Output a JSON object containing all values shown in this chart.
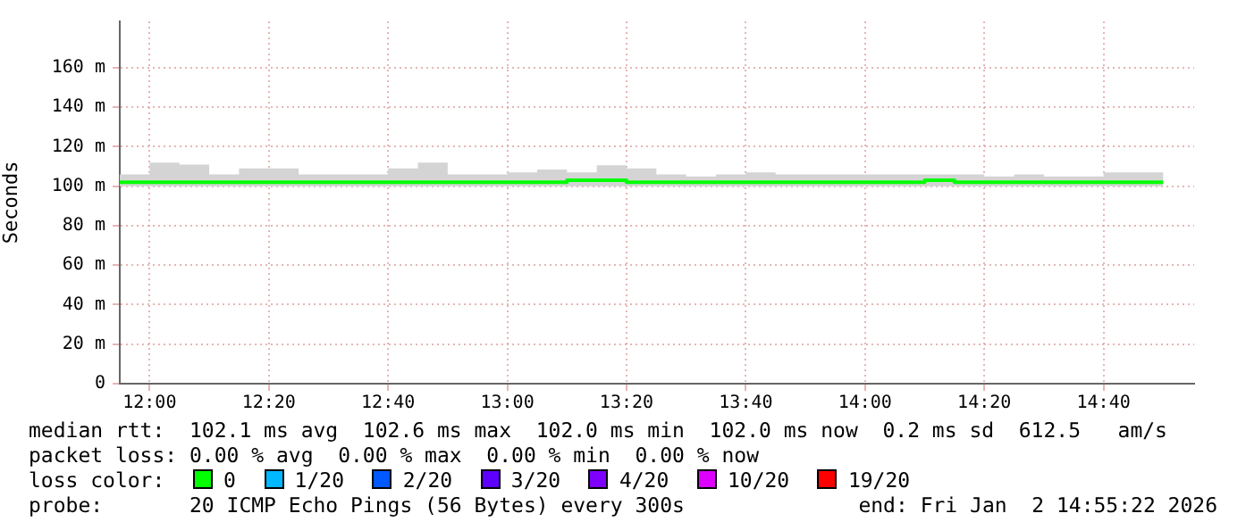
{
  "chart_data": {
    "type": "step",
    "ylabel": "Seconds",
    "legend_title": "loss color:",
    "legend": "bottom",
    "grid": true,
    "marker": "none",
    "x": [
      11.9167,
      12,
      12.0833,
      12.1667,
      12.25,
      12.3333,
      12.4167,
      12.5,
      12.5833,
      12.6667,
      12.75,
      12.8333,
      12.9167,
      13,
      13.0833,
      13.1667,
      13.25,
      13.3333,
      13.4167,
      13.5,
      13.5833,
      13.6667,
      13.75,
      13.8333,
      13.9167,
      14,
      14.0833,
      14.1667,
      14.25,
      14.3333,
      14.4167,
      14.5,
      14.5833,
      14.6667,
      14.75,
      14.8333
    ],
    "xlim": [
      11.9167,
      14.92
    ],
    "xticks": [
      {
        "value": 12,
        "label": "12:00"
      },
      {
        "value": 12.3333,
        "label": "12:20"
      },
      {
        "value": 12.6667,
        "label": "12:40"
      },
      {
        "value": 13,
        "label": "13:00"
      },
      {
        "value": 13.3333,
        "label": "13:20"
      },
      {
        "value": 13.6667,
        "label": "13:40"
      },
      {
        "value": 14,
        "label": "14:00"
      },
      {
        "value": 14.3333,
        "label": "14:20"
      },
      {
        "value": 14.6667,
        "label": "14:40"
      }
    ],
    "ylim": [
      0,
      183.5
    ],
    "yticks": [
      0,
      {
        "value": 20,
        "label": "20 m"
      },
      {
        "value": 40,
        "label": "40 m"
      },
      {
        "value": 60,
        "label": "60 m"
      },
      {
        "value": 80,
        "label": "80 m"
      },
      {
        "value": 100,
        "label": "100 m"
      },
      {
        "value": 120,
        "label": "120 m"
      },
      {
        "value": 140,
        "label": "140 m"
      },
      {
        "value": 160,
        "label": "160 m"
      }
    ],
    "series": [
      {
        "name": "0",
        "color": "#00ff00",
        "values": [
          102,
          102,
          102,
          102,
          102,
          102,
          102,
          102,
          102,
          102,
          102,
          102,
          102,
          102,
          102,
          102,
          103,
          103,
          102,
          102,
          102,
          102,
          102,
          102,
          102,
          102,
          102,
          102,
          103,
          102,
          102,
          102,
          102,
          102,
          102,
          102
        ],
        "lower": [
          100,
          100,
          100,
          100,
          100,
          100,
          100,
          100,
          100,
          100,
          100,
          100,
          100,
          100,
          100,
          100,
          100,
          100,
          100,
          100,
          100,
          100,
          100,
          100,
          100,
          100,
          100,
          100,
          100,
          100,
          100,
          100,
          100,
          100,
          100,
          100
        ],
        "upper": [
          106,
          112,
          111,
          106,
          109,
          109,
          106,
          106,
          106,
          109,
          112,
          106,
          106,
          107,
          108.5,
          107,
          110.6,
          109,
          106,
          105,
          106,
          107,
          106,
          106,
          106,
          106,
          106,
          106,
          106,
          105,
          106,
          105,
          105,
          107,
          107,
          106
        ]
      },
      {
        "name": "1/20",
        "color": "#00b8ff",
        "values": [
          null,
          null,
          null,
          null,
          null,
          null,
          null,
          null,
          null,
          null,
          null,
          null,
          null,
          null,
          null,
          null,
          null,
          null,
          null,
          null,
          null,
          null,
          null,
          null,
          null,
          null,
          null,
          null,
          null,
          null,
          null,
          null,
          null,
          null,
          null,
          null
        ]
      },
      {
        "name": "2/20",
        "color": "#0059ff",
        "values": [
          null,
          null,
          null,
          null,
          null,
          null,
          null,
          null,
          null,
          null,
          null,
          null,
          null,
          null,
          null,
          null,
          null,
          null,
          null,
          null,
          null,
          null,
          null,
          null,
          null,
          null,
          null,
          null,
          null,
          null,
          null,
          null,
          null,
          null,
          null,
          null
        ]
      },
      {
        "name": "3/20",
        "color": "#5e00ff",
        "values": [
          null,
          null,
          null,
          null,
          null,
          null,
          null,
          null,
          null,
          null,
          null,
          null,
          null,
          null,
          null,
          null,
          null,
          null,
          null,
          null,
          null,
          null,
          null,
          null,
          null,
          null,
          null,
          null,
          null,
          null,
          null,
          null,
          null,
          null,
          null,
          null
        ]
      },
      {
        "name": "4/20",
        "color": "#7e00ff",
        "values": [
          null,
          null,
          null,
          null,
          null,
          null,
          null,
          null,
          null,
          null,
          null,
          null,
          null,
          null,
          null,
          null,
          null,
          null,
          null,
          null,
          null,
          null,
          null,
          null,
          null,
          null,
          null,
          null,
          null,
          null,
          null,
          null,
          null,
          null,
          null,
          null
        ]
      },
      {
        "name": "10/20",
        "color": "#dd00ff",
        "values": [
          null,
          null,
          null,
          null,
          null,
          null,
          null,
          null,
          null,
          null,
          null,
          null,
          null,
          null,
          null,
          null,
          null,
          null,
          null,
          null,
          null,
          null,
          null,
          null,
          null,
          null,
          null,
          null,
          null,
          null,
          null,
          null,
          null,
          null,
          null,
          null
        ]
      },
      {
        "name": "19/20",
        "color": "#ff0000",
        "values": [
          null,
          null,
          null,
          null,
          null,
          null,
          null,
          null,
          null,
          null,
          null,
          null,
          null,
          null,
          null,
          null,
          null,
          null,
          null,
          null,
          null,
          null,
          null,
          null,
          null,
          null,
          null,
          null,
          null,
          null,
          null,
          null,
          null,
          null,
          null,
          null
        ]
      }
    ],
    "annotations": [
      "median rtt:  102.1 ms avg  102.6 ms max  102.0 ms min  102.0 ms now  0.2 ms sd  612.5   am/s",
      "packet loss: 0.00 % avg  0.00 % max  0.00 % min  0.00 % now",
      "probe:       20 ICMP Echo Pings (56 Bytes) every 300s",
      "end: Fri Jan  2 14:55:22 2026"
    ]
  }
}
